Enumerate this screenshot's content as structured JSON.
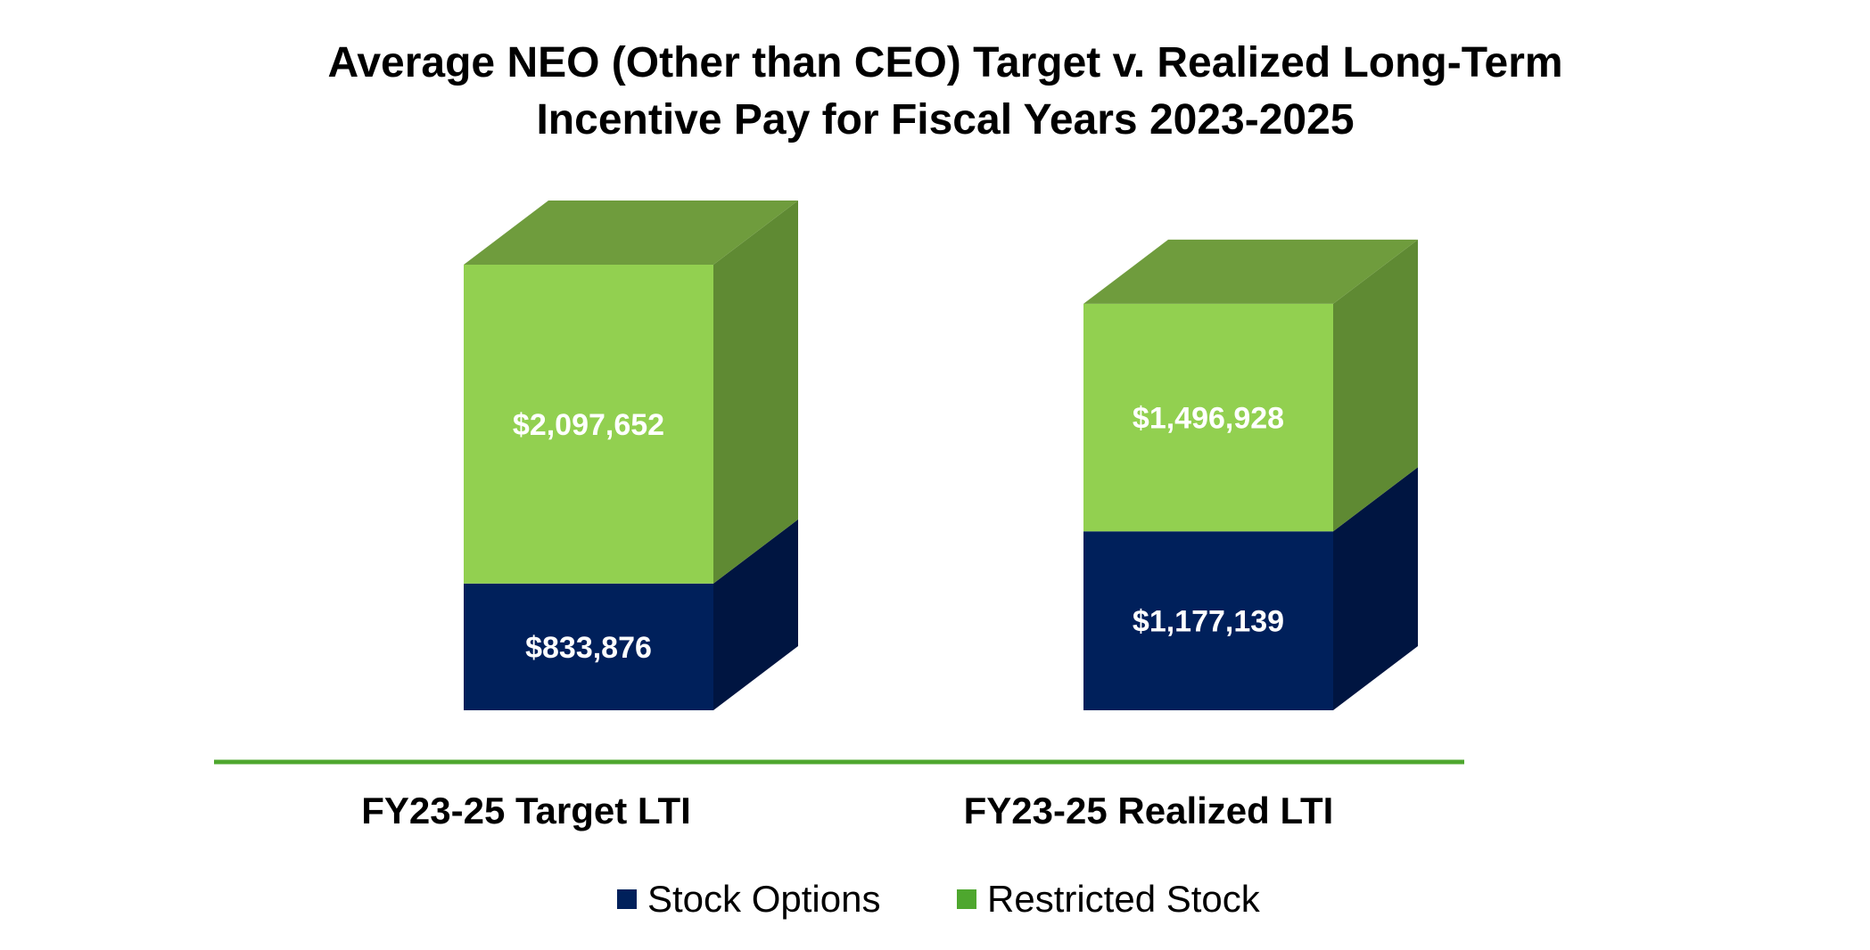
{
  "chart_data": {
    "type": "bar",
    "stacked": true,
    "style": "3d",
    "title_lines": [
      "Average NEO (Other than CEO) Target v. Realized Long-Term",
      "Incentive Pay for Fiscal Years 2023-2025"
    ],
    "categories": [
      "FY23-25 Target LTI",
      "FY23-25 Realized LTI"
    ],
    "series": [
      {
        "name": "Stock Options",
        "values": [
          833876,
          1177139
        ],
        "labels": [
          "$833,876",
          "$1,177,139"
        ],
        "color": "#00205B",
        "color_side": "#001541",
        "color_top": "#00184A"
      },
      {
        "name": "Restricted Stock",
        "values": [
          2097652,
          1496928
        ],
        "labels": [
          "$2,097,652",
          "$1,496,928"
        ],
        "color": "#92D050",
        "color_side": "#5F8A33",
        "color_top": "#6F9C3D"
      }
    ],
    "legend_swatch_colors": [
      "#00205B",
      "#4EA72E"
    ],
    "axis_line_color": "#4EA72E",
    "legend_position": "bottom",
    "grid": false
  }
}
